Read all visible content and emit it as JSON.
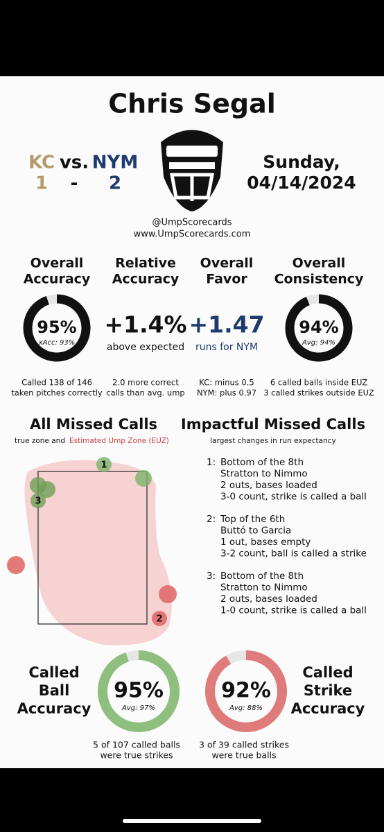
{
  "header": {
    "umpire": "Chris Segal",
    "away_team": "KC",
    "vs": "vs.",
    "home_team": "NYM",
    "away_score": "1",
    "dash": "-",
    "home_score": "2",
    "day": "Sunday,",
    "date": "04/14/2024",
    "handle": "@UmpScorecards",
    "site": "www.UmpScorecards.com"
  },
  "stats": [
    {
      "title": [
        "Overall",
        "Accuracy"
      ],
      "gauge": {
        "value": 95,
        "label": "95%",
        "sub": "xAcc: 93%"
      },
      "notes": [
        "Called 138 of 146",
        "taken pitches correctly"
      ]
    },
    {
      "title": [
        "Relative",
        "Accuracy"
      ],
      "big": "+1.4%",
      "caption": "above expected",
      "notes": [
        "2.0 more correct",
        "calls than avg. ump"
      ]
    },
    {
      "title": [
        "Overall",
        "Favor"
      ],
      "big": "+1.47",
      "caption": "runs for NYM",
      "notes": [
        "KC: minus 0.5",
        "NYM: plus 0.97"
      ]
    },
    {
      "title": [
        "Overall",
        "Consistency"
      ],
      "gauge": {
        "value": 94,
        "label": "94%",
        "sub": "Avg: 94%"
      },
      "notes": [
        "6 called balls inside EUZ",
        "3 called strikes outside EUZ"
      ]
    }
  ],
  "missed": {
    "title": "All Missed Calls",
    "subtitle": "true zone and",
    "subtitle_euz": "Estimated Ump Zone (EUZ)",
    "labels": [
      "1",
      "2",
      "3"
    ]
  },
  "impactful": {
    "title": "Impactful Missed Calls",
    "subtitle": "largest changes in run expectancy",
    "items": [
      {
        "num": "1:",
        "lines": [
          "Bottom of the 8th",
          "Stratton to Nimmo",
          "2 outs, bases loaded",
          "3-0 count, strike is called a ball"
        ]
      },
      {
        "num": "2:",
        "lines": [
          "Top of the 6th",
          "Buttó to Garcia",
          "1 out, bases empty",
          "3-2 count, ball is called a strike"
        ]
      },
      {
        "num": "3:",
        "lines": [
          "Bottom of the 8th",
          "Stratton to Nimmo",
          "2 outs, bases loaded",
          "1-0 count, strike is called a ball"
        ]
      }
    ]
  },
  "bottom": [
    {
      "title": [
        "Called",
        "Ball",
        "Accuracy"
      ],
      "gauge": {
        "value": 95,
        "label": "95%",
        "sub": "Avg: 97%"
      },
      "notes": [
        "5 of 107 called balls",
        "were true strikes"
      ]
    },
    {
      "title": [
        "Called",
        "Strike",
        "Accuracy"
      ],
      "gauge": {
        "value": 92,
        "label": "92%",
        "sub": "Avg: 88%"
      },
      "notes": [
        "3 of 39 called strikes",
        "were true balls"
      ]
    }
  ]
}
